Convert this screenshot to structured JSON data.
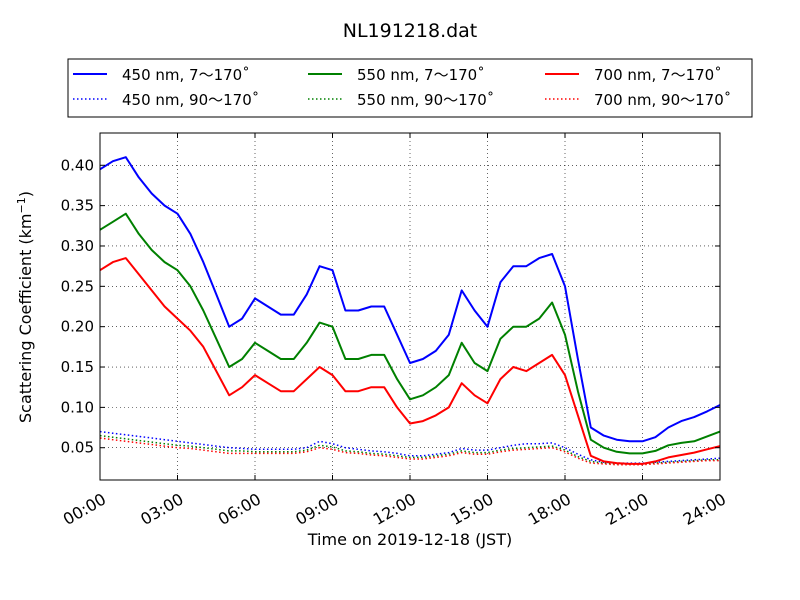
{
  "chart_data": {
    "type": "line",
    "title": "NL191218.dat",
    "xlabel": "Time on 2019-12-18 (JST)",
    "ylabel": "Scattering Coefficient (km",
    "ylabel_sup": "−1",
    "ylabel_end": ")",
    "xlim": [
      0,
      24
    ],
    "ylim": [
      0.01,
      0.44
    ],
    "grid": true,
    "legend_position": "top, outside plot, 3 columns",
    "x_ticks": [
      0,
      3,
      6,
      9,
      12,
      15,
      18,
      21,
      24
    ],
    "x_tick_labels": [
      "00:00",
      "03:00",
      "06:00",
      "09:00",
      "12:00",
      "15:00",
      "18:00",
      "21:00",
      "24:00"
    ],
    "y_ticks": [
      0.05,
      0.1,
      0.15,
      0.2,
      0.25,
      0.3,
      0.35,
      0.4
    ],
    "y_tick_labels": [
      "0.05",
      "0.10",
      "0.15",
      "0.20",
      "0.25",
      "0.30",
      "0.35",
      "0.40"
    ],
    "x": [
      0,
      0.5,
      1,
      1.5,
      2,
      2.5,
      3,
      3.5,
      4,
      4.5,
      5,
      5.5,
      6,
      6.5,
      7,
      7.5,
      8,
      8.5,
      9,
      9.5,
      10,
      10.5,
      11,
      11.5,
      12,
      12.5,
      13,
      13.5,
      14,
      14.5,
      15,
      15.5,
      16,
      16.5,
      17,
      17.5,
      18,
      18.5,
      19,
      19.5,
      20,
      20.5,
      21,
      21.5,
      22,
      22.5,
      23,
      23.5,
      24
    ],
    "series": [
      {
        "name": "450 nm, 7～170˚",
        "color": "#0000ff",
        "style": "solid",
        "values": [
          0.395,
          0.405,
          0.41,
          0.385,
          0.365,
          0.35,
          0.34,
          0.315,
          0.28,
          0.24,
          0.2,
          0.21,
          0.235,
          0.225,
          0.215,
          0.215,
          0.24,
          0.275,
          0.27,
          0.22,
          0.22,
          0.225,
          0.225,
          0.19,
          0.155,
          0.16,
          0.17,
          0.19,
          0.245,
          0.22,
          0.2,
          0.255,
          0.275,
          0.275,
          0.285,
          0.29,
          0.25,
          0.16,
          0.075,
          0.065,
          0.06,
          0.058,
          0.058,
          0.063,
          0.075,
          0.083,
          0.088,
          0.095,
          0.103
        ]
      },
      {
        "name": "450 nm, 90～170˚",
        "color": "#0000ff",
        "style": "dotted",
        "values": [
          0.07,
          0.068,
          0.066,
          0.064,
          0.062,
          0.06,
          0.058,
          0.056,
          0.054,
          0.052,
          0.05,
          0.049,
          0.048,
          0.048,
          0.048,
          0.048,
          0.05,
          0.058,
          0.055,
          0.05,
          0.048,
          0.046,
          0.045,
          0.043,
          0.04,
          0.04,
          0.042,
          0.044,
          0.049,
          0.047,
          0.047,
          0.05,
          0.053,
          0.055,
          0.055,
          0.056,
          0.05,
          0.042,
          0.035,
          0.032,
          0.031,
          0.031,
          0.031,
          0.032,
          0.033,
          0.034,
          0.035,
          0.036,
          0.037
        ]
      },
      {
        "name": "550 nm, 7～170˚",
        "color": "#008000",
        "style": "solid",
        "values": [
          0.32,
          0.33,
          0.34,
          0.315,
          0.295,
          0.28,
          0.27,
          0.25,
          0.22,
          0.185,
          0.15,
          0.16,
          0.18,
          0.17,
          0.16,
          0.16,
          0.18,
          0.205,
          0.2,
          0.16,
          0.16,
          0.165,
          0.165,
          0.135,
          0.11,
          0.115,
          0.125,
          0.14,
          0.18,
          0.155,
          0.145,
          0.185,
          0.2,
          0.2,
          0.21,
          0.23,
          0.19,
          0.12,
          0.06,
          0.05,
          0.045,
          0.043,
          0.043,
          0.046,
          0.053,
          0.056,
          0.058,
          0.064,
          0.07
        ]
      },
      {
        "name": "550 nm, 90～170˚",
        "color": "#008000",
        "style": "dotted",
        "values": [
          0.065,
          0.063,
          0.061,
          0.059,
          0.057,
          0.055,
          0.053,
          0.052,
          0.05,
          0.048,
          0.046,
          0.046,
          0.045,
          0.045,
          0.045,
          0.045,
          0.047,
          0.053,
          0.051,
          0.046,
          0.045,
          0.043,
          0.042,
          0.04,
          0.038,
          0.038,
          0.04,
          0.042,
          0.046,
          0.044,
          0.044,
          0.047,
          0.049,
          0.05,
          0.051,
          0.052,
          0.047,
          0.039,
          0.033,
          0.031,
          0.03,
          0.03,
          0.03,
          0.031,
          0.032,
          0.033,
          0.034,
          0.035,
          0.035
        ]
      },
      {
        "name": "700 nm, 7～170˚",
        "color": "#ff0000",
        "style": "solid",
        "values": [
          0.27,
          0.28,
          0.285,
          0.265,
          0.245,
          0.225,
          0.21,
          0.195,
          0.175,
          0.145,
          0.115,
          0.125,
          0.14,
          0.13,
          0.12,
          0.12,
          0.135,
          0.15,
          0.14,
          0.12,
          0.12,
          0.125,
          0.125,
          0.1,
          0.08,
          0.083,
          0.09,
          0.1,
          0.13,
          0.115,
          0.105,
          0.135,
          0.15,
          0.145,
          0.155,
          0.165,
          0.14,
          0.09,
          0.04,
          0.033,
          0.031,
          0.03,
          0.03,
          0.033,
          0.038,
          0.041,
          0.044,
          0.048,
          0.052
        ]
      },
      {
        "name": "700 nm, 90～170˚",
        "color": "#ff0000",
        "style": "dotted",
        "values": [
          0.062,
          0.06,
          0.058,
          0.056,
          0.054,
          0.052,
          0.05,
          0.049,
          0.047,
          0.045,
          0.043,
          0.043,
          0.043,
          0.043,
          0.043,
          0.043,
          0.045,
          0.05,
          0.048,
          0.044,
          0.043,
          0.041,
          0.04,
          0.038,
          0.036,
          0.036,
          0.038,
          0.04,
          0.044,
          0.042,
          0.042,
          0.045,
          0.047,
          0.048,
          0.049,
          0.05,
          0.045,
          0.037,
          0.031,
          0.03,
          0.029,
          0.029,
          0.029,
          0.03,
          0.031,
          0.032,
          0.033,
          0.034,
          0.034
        ]
      }
    ]
  }
}
